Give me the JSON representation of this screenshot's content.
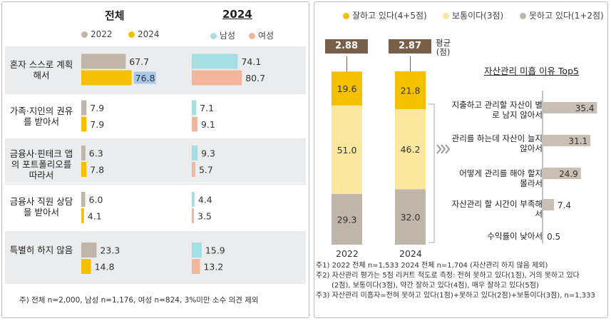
{
  "colors": {
    "y2022": "#bfb5a8",
    "y2024": "#f5c000",
    "male": "#a3dfe3",
    "female": "#f4b69b",
    "rowband": "#ebeced",
    "good": "#f5c000",
    "normal": "#fce79e",
    "bad": "#bfb5a8",
    "avgbox": "#7a5f48",
    "reasonbar": "#c9bfb4"
  },
  "left": {
    "title_total": "전체",
    "title_2024": "2024",
    "legend_total": [
      "2022",
      "2024"
    ],
    "legend_gender": [
      "남성",
      "여성"
    ],
    "note": "주)  전체 n=2,000, 남성 n=1,176, 여성 n=824, 3%미만 소수 의견 제외"
  },
  "right": {
    "legend": [
      "잘하고 있다(4+5점)",
      "보통이다(3점)",
      "못하고 있다(1+2점)"
    ],
    "avg_label": "평균",
    "avg_unit": "(점)",
    "years": [
      "2022",
      "2024"
    ],
    "reason_title": "자산관리 미흡 이유 Top5",
    "notes": [
      "주1) 2022 전체 n=1,533  2024 전체 n=1,704 (자산관리 하지 않음 제외)",
      "주2) 자산관리 평가는 5점 리커트 척도로 측정: 전혀 못하고 있다(1점), 거의 못하고 있다",
      "(2점), 보통이다(3점), 약간 잘하고 있다(4점), 매우 잘하고 있다(5점)",
      "주3) 자산관리 미흡자=전혀 못하고 있다(1점)+못하고 있다(2점)+보통이다(3점), n=1,333"
    ]
  },
  "chart_data": [
    {
      "type": "bar",
      "categories": [
        "혼자 스스로 계획해서",
        "가족·지인의 권유를 받아서",
        "금융사·핀테크 앱의 포트폴리오를 따라서",
        "금융사 직원 상담을 받아서",
        "특별히 하지 않음"
      ],
      "series": [
        {
          "name": "2022",
          "values": [
            67.7,
            7.9,
            6.3,
            6.0,
            23.3
          ]
        },
        {
          "name": "2024",
          "values": [
            76.8,
            7.9,
            7.8,
            4.1,
            14.8
          ]
        }
      ],
      "title": "전체"
    },
    {
      "type": "bar",
      "categories": [
        "혼자 스스로 계획해서",
        "가족·지인의 권유를 받아서",
        "금융사·핀테크 앱의 포트폴리오를 따라서",
        "금융사 직원 상담을 받아서",
        "특별히 하지 않음"
      ],
      "series": [
        {
          "name": "남성",
          "values": [
            74.1,
            7.1,
            9.3,
            4.4,
            15.9
          ]
        },
        {
          "name": "여성",
          "values": [
            80.7,
            9.1,
            5.7,
            3.5,
            13.2
          ]
        }
      ],
      "title": "2024"
    },
    {
      "type": "bar",
      "stacked": true,
      "categories": [
        "2022",
        "2024"
      ],
      "series": [
        {
          "name": "못하고 있다(1+2점)",
          "values": [
            29.3,
            32.0
          ]
        },
        {
          "name": "보통이다(3점)",
          "values": [
            51.0,
            46.2
          ]
        },
        {
          "name": "잘하고 있다(4+5점)",
          "values": [
            19.6,
            21.8
          ]
        }
      ],
      "averages": [
        2.88,
        2.87
      ]
    },
    {
      "type": "bar",
      "title": "자산관리 미흡 이유 Top5",
      "categories": [
        "지출하고 관리할 자산이 별로 남지 않아서",
        "관리를 하는데 자산이 늘지 않아서",
        "어떻게 관리를 해야 할지 몰라서",
        "자산관리 할 시간이 부족해서",
        "수익률이 낮아서"
      ],
      "values": [
        35.4,
        31.1,
        24.9,
        7.4,
        0.5
      ]
    }
  ]
}
